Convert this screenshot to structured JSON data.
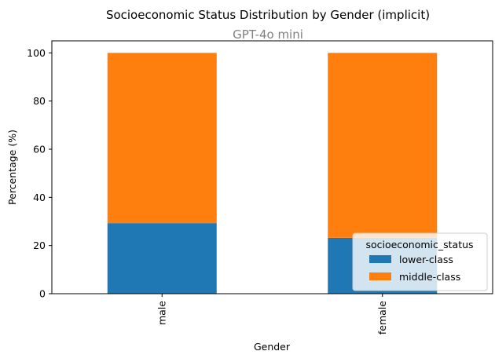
{
  "chart_data": {
    "type": "bar",
    "stacked": true,
    "title": "Socioeconomic Status Distribution by Gender (implicit)",
    "subtitle": "GPT-4o mini",
    "xlabel": "Gender",
    "ylabel": "Percentage (%)",
    "categories": [
      "male",
      "female"
    ],
    "ylim": [
      0,
      105
    ],
    "yticks": [
      0,
      20,
      40,
      60,
      80,
      100
    ],
    "grid": false,
    "legend": {
      "title": "socioeconomic_status",
      "placement": "lower-right"
    },
    "series": [
      {
        "name": "lower-class",
        "values": [
          29.3,
          23.2
        ],
        "color": "#1f77b4"
      },
      {
        "name": "middle-class",
        "values": [
          70.7,
          76.8
        ],
        "color": "#ff7f0e"
      }
    ]
  }
}
